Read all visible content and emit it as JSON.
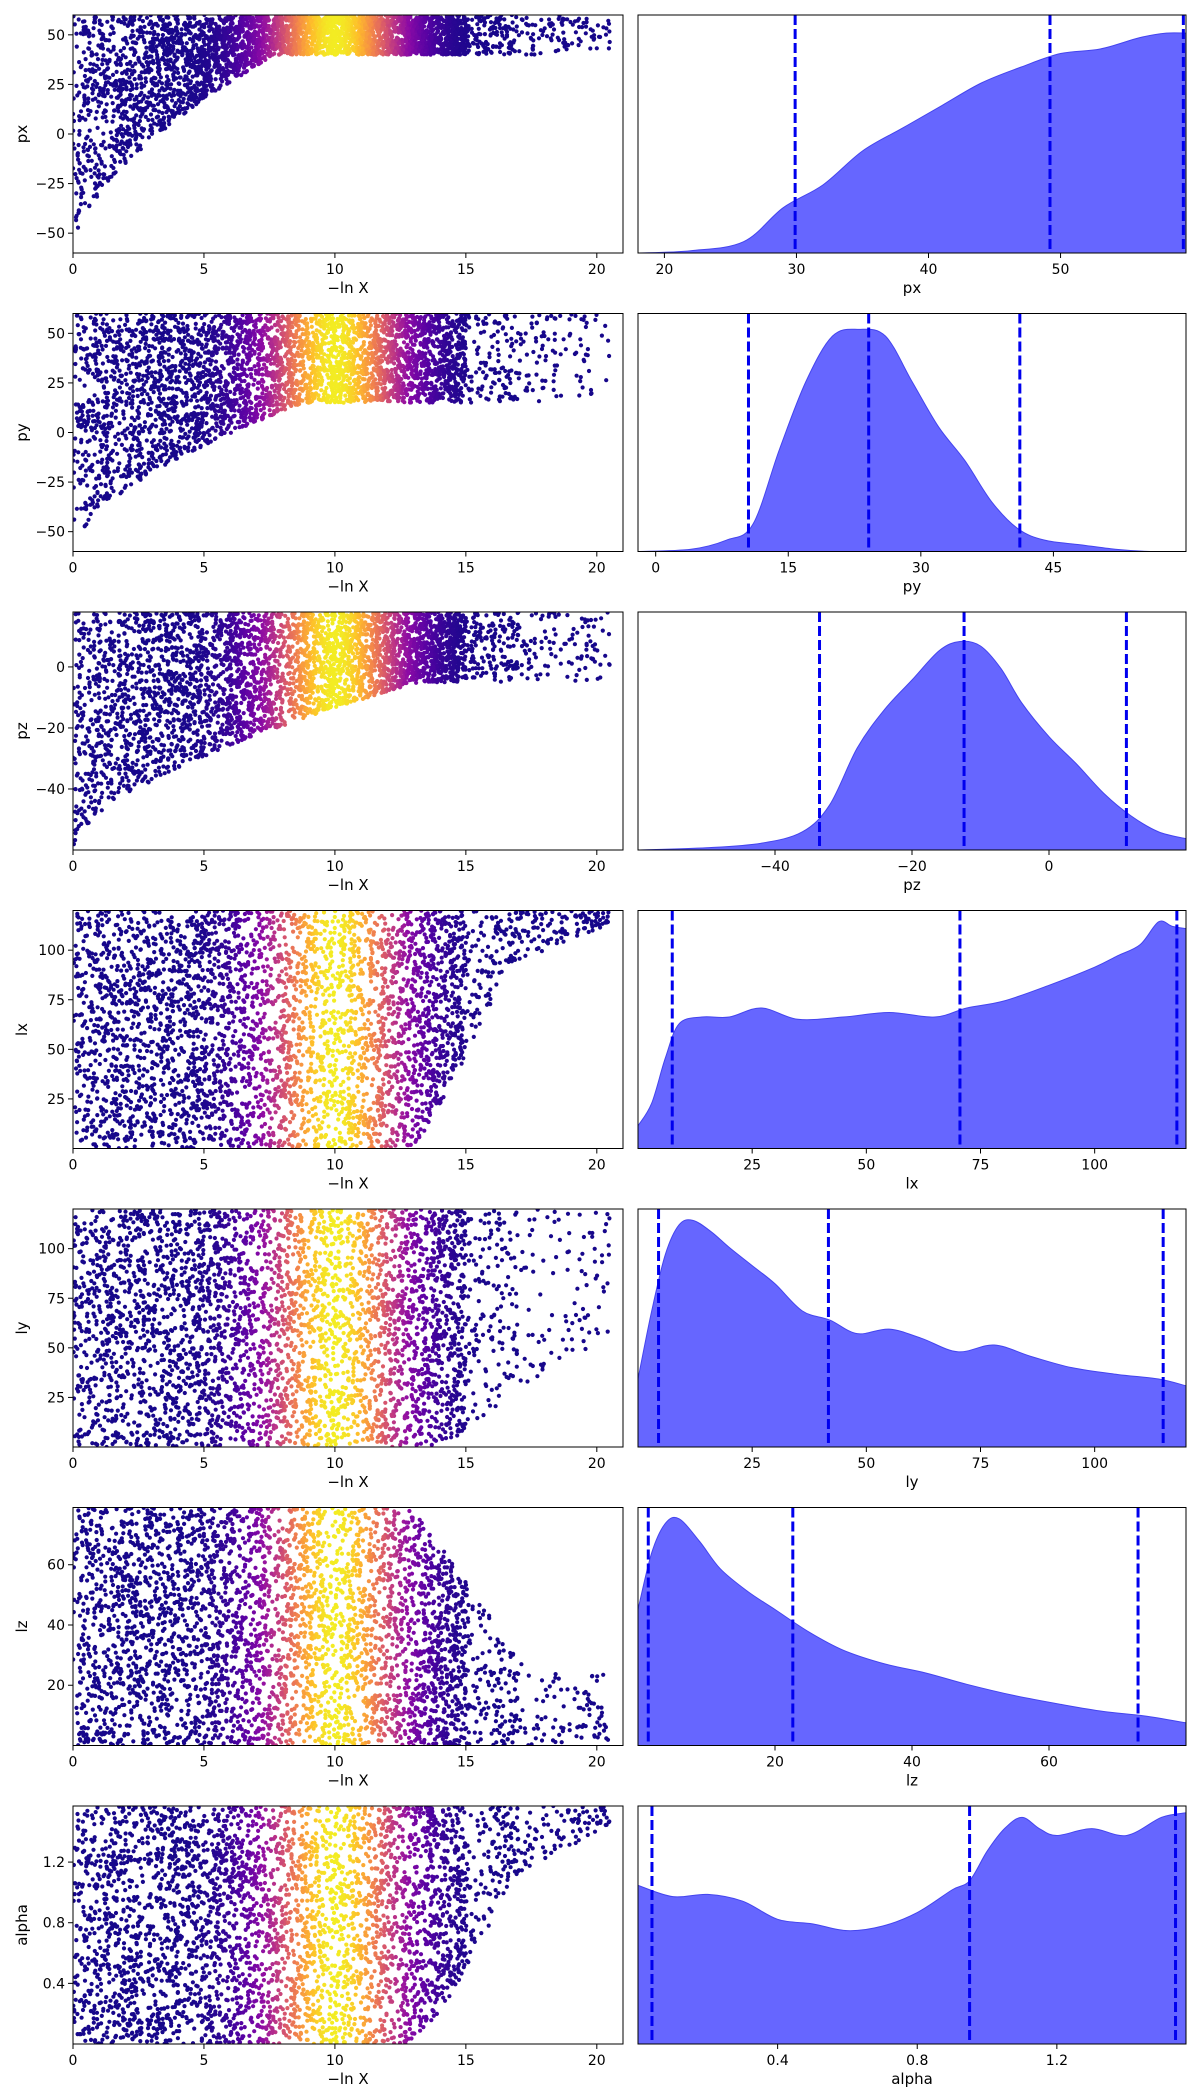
{
  "chart_data": [
    {
      "panel": "trace",
      "param": "px",
      "type": "scatter",
      "xlabel": "−ln X",
      "ylabel": "px",
      "xlim": [
        0,
        21
      ],
      "ylim": [
        -60,
        60
      ],
      "xticks": [
        0,
        5,
        10,
        15,
        20
      ],
      "yticks": [
        -50,
        -25,
        0,
        25,
        50
      ],
      "trace": {
        "x_start": 0,
        "x_end": 20.5,
        "y_start": -60,
        "y_converge": 50,
        "spread": 10,
        "x_full": 3.5,
        "max_x": 20.5
      },
      "colormap": "plasma",
      "color_peak_x": 10,
      "color_peak_width": 2.5
    },
    {
      "panel": "posterior",
      "param": "px",
      "type": "area",
      "xlabel": "px",
      "xlim": [
        18,
        59.5
      ],
      "xticks": [
        20,
        30,
        40,
        50
      ],
      "density": {
        "x": [
          18,
          22,
          26,
          29,
          32,
          35,
          38,
          41,
          44,
          47,
          50,
          53,
          56,
          58,
          59.5
        ],
        "y": [
          0.0,
          0.01,
          0.05,
          0.2,
          0.3,
          0.45,
          0.55,
          0.65,
          0.75,
          0.82,
          0.88,
          0.9,
          0.95,
          0.97,
          0.97
        ]
      },
      "vlines": [
        29.9,
        49.2,
        59.3
      ],
      "fill_color": "#6666ff",
      "line_color": "#0000ee"
    },
    {
      "panel": "trace",
      "param": "py",
      "type": "scatter",
      "xlabel": "−ln X",
      "ylabel": "py",
      "xlim": [
        0,
        21
      ],
      "ylim": [
        -60,
        60
      ],
      "xticks": [
        0,
        5,
        10,
        15,
        20
      ],
      "yticks": [
        -50,
        -25,
        0,
        25,
        50
      ],
      "trace": {
        "x_start": 0,
        "x_end": 20.5,
        "y_start": -60,
        "y_converge": 23,
        "spread": 8,
        "x_full": 4,
        "max_x": 20.5
      },
      "colormap": "plasma",
      "color_peak_x": 10,
      "color_peak_width": 2.5
    },
    {
      "panel": "posterior",
      "param": "py",
      "type": "area",
      "xlabel": "py",
      "xlim": [
        -2,
        60
      ],
      "xticks": [
        0,
        15,
        30,
        45
      ],
      "density": {
        "x": [
          -2,
          4,
          8,
          11,
          14,
          17,
          20,
          23,
          26,
          29,
          32,
          35,
          38,
          41,
          44,
          48,
          52,
          56,
          60
        ],
        "y": [
          0.0,
          0.01,
          0.05,
          0.12,
          0.45,
          0.75,
          0.95,
          0.98,
          0.95,
          0.75,
          0.55,
          0.4,
          0.22,
          0.1,
          0.05,
          0.03,
          0.01,
          0.0,
          0.0
        ]
      },
      "vlines": [
        10.5,
        24.1,
        41.2
      ],
      "fill_color": "#6666ff",
      "line_color": "#0000ee"
    },
    {
      "panel": "trace",
      "param": "pz",
      "type": "scatter",
      "xlabel": "−ln X",
      "ylabel": "pz",
      "xlim": [
        0,
        21
      ],
      "ylim": [
        -60,
        18
      ],
      "xticks": [
        0,
        5,
        10,
        15,
        20
      ],
      "yticks": [
        -40,
        -20,
        0
      ],
      "trace": {
        "x_start": 0,
        "x_end": 20.5,
        "y_start": -60,
        "y_converge": 15,
        "spread": 20,
        "x_full": 6,
        "max_x": 20.5
      },
      "colormap": "plasma",
      "color_peak_x": 10,
      "color_peak_width": 2.5
    },
    {
      "panel": "posterior",
      "param": "pz",
      "type": "area",
      "xlabel": "pz",
      "xlim": [
        -60,
        20
      ],
      "xticks": [
        -40,
        -20,
        0
      ],
      "density": {
        "x": [
          -60,
          -50,
          -42,
          -36,
          -32,
          -28,
          -24,
          -20,
          -16,
          -13,
          -10,
          -7,
          -4,
          0,
          4,
          8,
          12,
          16,
          20
        ],
        "y": [
          0.0,
          0.01,
          0.03,
          0.08,
          0.2,
          0.45,
          0.62,
          0.75,
          0.88,
          0.92,
          0.9,
          0.8,
          0.65,
          0.5,
          0.38,
          0.25,
          0.15,
          0.08,
          0.05
        ]
      },
      "vlines": [
        -33.5,
        -12.4,
        11.3
      ],
      "fill_color": "#6666ff",
      "line_color": "#0000ee"
    },
    {
      "panel": "trace",
      "param": "lx",
      "type": "scatter",
      "xlabel": "−ln X",
      "ylabel": "lx",
      "xlim": [
        0,
        21
      ],
      "ylim": [
        0,
        120
      ],
      "xticks": [
        0,
        5,
        10,
        15,
        20
      ],
      "yticks": [
        25,
        50,
        75,
        100
      ],
      "trace": {
        "x_start": 0,
        "x_end": 20.5,
        "y_start": 2,
        "y_converge": 115,
        "spread": 40,
        "x_full": 0,
        "max_x": 20.5
      },
      "colormap": "plasma",
      "color_peak_x": 10,
      "color_peak_width": 2.5
    },
    {
      "panel": "posterior",
      "param": "lx",
      "type": "area",
      "xlabel": "lx",
      "xlim": [
        0,
        120
      ],
      "xticks": [
        25,
        50,
        75,
        100
      ],
      "density": {
        "x": [
          0,
          3,
          6,
          9,
          14,
          20,
          27,
          35,
          45,
          55,
          65,
          72,
          80,
          90,
          100,
          105,
          110,
          114,
          117,
          120
        ],
        "y": [
          0.1,
          0.2,
          0.4,
          0.55,
          0.58,
          0.58,
          0.62,
          0.57,
          0.58,
          0.6,
          0.58,
          0.62,
          0.65,
          0.72,
          0.8,
          0.85,
          0.9,
          1.0,
          0.98,
          0.97
        ]
      },
      "vlines": [
        7.5,
        70.5,
        118
      ],
      "fill_color": "#6666ff",
      "line_color": "#0000ee"
    },
    {
      "panel": "trace",
      "param": "ly",
      "type": "scatter",
      "xlabel": "−ln X",
      "ylabel": "ly",
      "xlim": [
        0,
        21
      ],
      "ylim": [
        0,
        120
      ],
      "xticks": [
        0,
        5,
        10,
        15,
        20
      ],
      "yticks": [
        25,
        50,
        75,
        100
      ],
      "trace": {
        "x_start": 0,
        "x_end": 20.5,
        "y_start": 2,
        "y_converge": 60,
        "spread": 60,
        "x_full": 0,
        "max_x": 20.5
      },
      "colormap": "plasma",
      "color_peak_x": 10,
      "color_peak_width": 2.5
    },
    {
      "panel": "posterior",
      "param": "ly",
      "type": "area",
      "xlabel": "ly",
      "xlim": [
        0,
        120
      ],
      "xticks": [
        25,
        50,
        75,
        100
      ],
      "density": {
        "x": [
          0,
          3,
          6,
          9,
          12,
          16,
          20,
          25,
          30,
          36,
          42,
          48,
          55,
          62,
          70,
          78,
          86,
          95,
          105,
          114,
          120
        ],
        "y": [
          0.3,
          0.6,
          0.85,
          0.98,
          1.0,
          0.95,
          0.88,
          0.8,
          0.72,
          0.6,
          0.56,
          0.5,
          0.52,
          0.48,
          0.42,
          0.45,
          0.4,
          0.35,
          0.32,
          0.3,
          0.27
        ]
      },
      "vlines": [
        4.5,
        41.7,
        115
      ],
      "fill_color": "#6666ff",
      "line_color": "#0000ee"
    },
    {
      "panel": "trace",
      "param": "lz",
      "type": "scatter",
      "xlabel": "−ln X",
      "ylabel": "lz",
      "xlim": [
        0,
        21
      ],
      "ylim": [
        0,
        79
      ],
      "xticks": [
        0,
        5,
        10,
        15,
        20
      ],
      "yticks": [
        20,
        40,
        60
      ],
      "trace": {
        "x_start": 0,
        "x_end": 20.5,
        "y_start": 2,
        "y_converge": 12,
        "spread": 40,
        "x_full": 0,
        "max_x": 20.5
      },
      "colormap": "plasma",
      "color_peak_x": 10,
      "color_peak_width": 2.5
    },
    {
      "panel": "posterior",
      "param": "lz",
      "type": "area",
      "xlabel": "lz",
      "xlim": [
        0,
        80
      ],
      "xticks": [
        20,
        40,
        60
      ],
      "density": {
        "x": [
          0,
          2,
          4,
          6,
          9,
          12,
          16,
          20,
          25,
          30,
          36,
          42,
          48,
          55,
          62,
          68,
          74,
          80
        ],
        "y": [
          0.6,
          0.85,
          0.98,
          1.0,
          0.9,
          0.78,
          0.68,
          0.6,
          0.5,
          0.42,
          0.36,
          0.32,
          0.27,
          0.22,
          0.18,
          0.15,
          0.13,
          0.1
        ]
      },
      "vlines": [
        1.5,
        22.6,
        73
      ],
      "fill_color": "#6666ff",
      "line_color": "#0000ee"
    },
    {
      "panel": "trace",
      "param": "alpha",
      "type": "scatter",
      "xlabel": "−ln X",
      "ylabel": "alpha",
      "xlim": [
        0,
        21
      ],
      "ylim": [
        0,
        1.57
      ],
      "xticks": [
        0,
        5,
        10,
        15,
        20
      ],
      "yticks": [
        0.4,
        0.8,
        1.2
      ],
      "trace": {
        "x_start": 0,
        "x_end": 20.5,
        "y_start": 0.02,
        "y_converge": 1.5,
        "spread": 0.8,
        "x_full": 0,
        "max_x": 20.5
      },
      "colormap": "plasma",
      "color_peak_x": 10,
      "color_peak_width": 2.5
    },
    {
      "panel": "posterior",
      "param": "alpha",
      "type": "area",
      "xlabel": "alpha",
      "xlim": [
        0,
        1.57
      ],
      "xticks": [
        0.4,
        0.8,
        1.2
      ],
      "density": {
        "x": [
          0,
          0.1,
          0.2,
          0.3,
          0.4,
          0.5,
          0.6,
          0.7,
          0.8,
          0.9,
          0.95,
          1.0,
          1.05,
          1.1,
          1.15,
          1.2,
          1.3,
          1.4,
          1.5,
          1.57
        ],
        "y": [
          0.7,
          0.65,
          0.66,
          0.63,
          0.55,
          0.53,
          0.5,
          0.52,
          0.58,
          0.68,
          0.72,
          0.85,
          0.95,
          1.0,
          0.95,
          0.92,
          0.95,
          0.92,
          1.0,
          1.02
        ]
      },
      "vlines": [
        0.04,
        0.95,
        1.54
      ],
      "fill_color": "#6666ff",
      "line_color": "#0000ee"
    }
  ]
}
